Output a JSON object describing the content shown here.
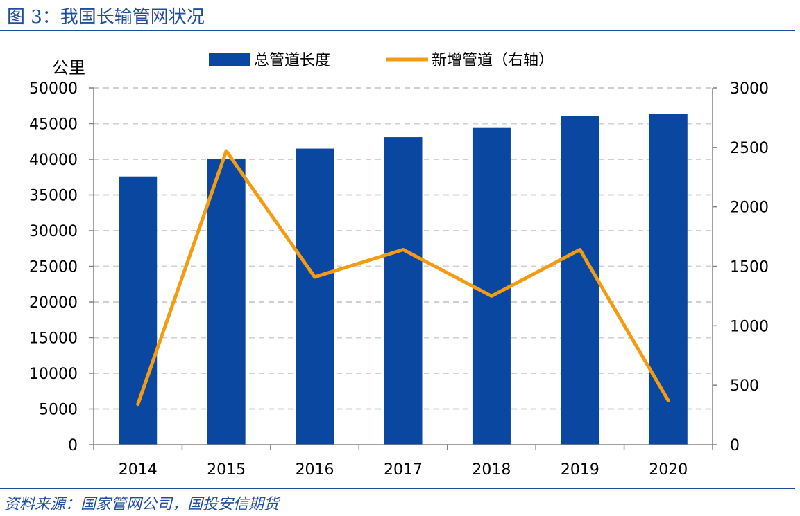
{
  "figure": {
    "title": "图 3：我国长输管网状况",
    "source": "资料来源：国家管网公司，国投安信期货"
  },
  "colors": {
    "bar": "#0a47a0",
    "line": "#f39c12",
    "title": "#1f4e9c",
    "grid": "#d0d0d0",
    "axis": "#808080"
  },
  "chart_data": {
    "type": "bar+line",
    "categories": [
      "2014",
      "2015",
      "2016",
      "2017",
      "2018",
      "2019",
      "2020"
    ],
    "series": [
      {
        "name": "总管道长度",
        "type": "bar",
        "axis": "left",
        "values": [
          37600,
          40100,
          41500,
          43100,
          44400,
          46100,
          46400
        ]
      },
      {
        "name": "新增管道（右轴）",
        "type": "line",
        "axis": "right",
        "values": [
          340,
          2470,
          1410,
          1640,
          1250,
          1640,
          370
        ]
      }
    ],
    "ylabel_left": "公里",
    "ylim_left": [
      0,
      50000
    ],
    "yticks_left": [
      "0",
      "5000",
      "10000",
      "15000",
      "20000",
      "25000",
      "30000",
      "35000",
      "40000",
      "45000",
      "50000"
    ],
    "ylim_right": [
      0,
      3000
    ],
    "yticks_right": [
      "0",
      "500",
      "1000",
      "1500",
      "2000",
      "2500",
      "3000"
    ],
    "grid": "horizontal dashed",
    "legend": "top-center"
  }
}
